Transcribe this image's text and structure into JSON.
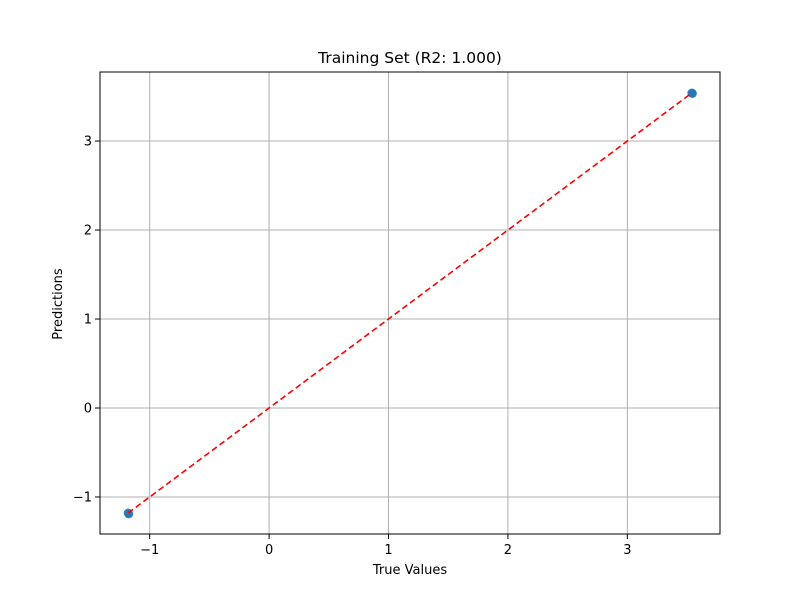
{
  "chart_data": {
    "type": "scatter",
    "title": "Training Set (R2: 1.000)",
    "xlabel": "True Values",
    "ylabel": "Predictions",
    "xlim": [
      -1.416,
      3.776
    ],
    "ylim": [
      -1.416,
      3.776
    ],
    "xticks": [
      -1,
      0,
      1,
      2,
      3
    ],
    "yticks": [
      -1,
      0,
      1,
      2,
      3
    ],
    "xtick_labels": [
      "−1",
      "0",
      "1",
      "2",
      "3"
    ],
    "ytick_labels": [
      "−1",
      "0",
      "1",
      "2",
      "3"
    ],
    "grid": true,
    "points": [
      {
        "x": -1.18,
        "y": -1.18
      },
      {
        "x": -1.175,
        "y": -1.19
      },
      {
        "x": 3.54,
        "y": 3.54
      },
      {
        "x": 3.545,
        "y": 3.535
      }
    ],
    "reference_line": {
      "x": [
        -1.18,
        3.54
      ],
      "y": [
        -1.18,
        3.54
      ],
      "style": "dashed"
    },
    "colors": {
      "points": "#1f77b4",
      "reference_line": "#ff0000",
      "grid": "#b0b0b0",
      "axes": "#000000"
    }
  }
}
